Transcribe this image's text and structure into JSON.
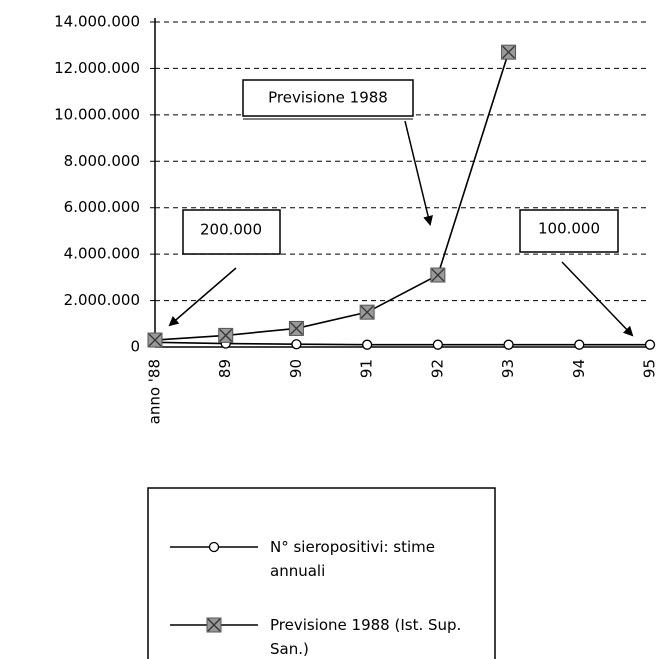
{
  "chart_data": {
    "type": "line",
    "categories": [
      "anno '88",
      "89",
      "90",
      "91",
      "92",
      "93",
      "94",
      "95"
    ],
    "series": [
      {
        "name": "N° sieropositivi: stime annuali",
        "color": "#000000",
        "marker": "circle",
        "values": [
          200000,
          150000,
          120000,
          100000,
          100000,
          100000,
          100000,
          100000
        ]
      },
      {
        "name": "Previsione 1988 (Ist. Sup. San.)",
        "color": "#000000",
        "marker": "square-x",
        "values": [
          300000,
          500000,
          800000,
          1500000,
          3100000,
          12700000,
          null,
          null
        ]
      }
    ],
    "ylim": [
      0,
      14000000
    ],
    "yticks": [
      0,
      {
        "value": 2000000,
        "label": "2.000.000"
      },
      {
        "value": 4000000,
        "label": "4.000.000"
      },
      {
        "value": 6000000,
        "label": "6.000.000"
      },
      {
        "value": 8000000,
        "label": "8.000.000"
      },
      {
        "value": 10000000,
        "label": "10.000.000"
      },
      {
        "value": 12000000,
        "label": "12.000.000"
      },
      {
        "value": 14000000,
        "label": "14.000.000"
      }
    ],
    "grid": true,
    "annotations": [
      "Previsione 1988",
      "200.000",
      "100.000"
    ]
  }
}
